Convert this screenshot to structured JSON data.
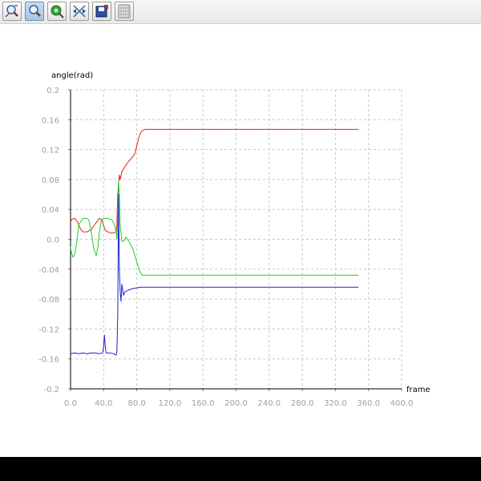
{
  "toolbar": {
    "buttons": [
      {
        "name": "zoom-in-button",
        "icon": "zoom-in-icon"
      },
      {
        "name": "zoom-button",
        "icon": "magnifier-icon",
        "active": true
      },
      {
        "name": "pan-button",
        "icon": "pan-icon"
      },
      {
        "name": "auto-fit-button",
        "icon": "fit-icon"
      },
      {
        "name": "export-button",
        "icon": "save-icon"
      },
      {
        "name": "grid-toggle-button",
        "icon": "grid-icon"
      }
    ]
  },
  "chart_data": {
    "type": "line",
    "xlabel": "frame",
    "ylabel": "angle(rad)",
    "xlim": [
      0,
      400
    ],
    "ylim": [
      -0.2,
      0.2
    ],
    "xticks": [
      "0.0",
      "40.0",
      "80.0",
      "120.0",
      "160.0",
      "200.0",
      "240.0",
      "280.0",
      "320.0",
      "360.0",
      "400.0"
    ],
    "yticks": [
      "0.2",
      "0.16",
      "0.12",
      "0.08",
      "0.04",
      "0.0",
      "-0.04",
      "-0.08",
      "-0.12",
      "-0.16",
      "-0.2"
    ],
    "grid": true,
    "series": [
      {
        "color": "#e02020",
        "points": [
          [
            0,
            0.024
          ],
          [
            2,
            0.027
          ],
          [
            5,
            0.028
          ],
          [
            8,
            0.024
          ],
          [
            12,
            0.014
          ],
          [
            15,
            0.01
          ],
          [
            20,
            0.01
          ],
          [
            25,
            0.013
          ],
          [
            30,
            0.021
          ],
          [
            35,
            0.028
          ],
          [
            38,
            0.026
          ],
          [
            40,
            0.018
          ],
          [
            42,
            0.012
          ],
          [
            45,
            0.01
          ],
          [
            50,
            0.008
          ],
          [
            55,
            0.01
          ],
          [
            56,
            0.02
          ],
          [
            57,
            0.06
          ],
          [
            58,
            0.075
          ],
          [
            59,
            0.086
          ],
          [
            60,
            0.08
          ],
          [
            62,
            0.09
          ],
          [
            65,
            0.096
          ],
          [
            70,
            0.104
          ],
          [
            75,
            0.11
          ],
          [
            78,
            0.115
          ],
          [
            80,
            0.125
          ],
          [
            83,
            0.138
          ],
          [
            86,
            0.145
          ],
          [
            90,
            0.147
          ],
          [
            100,
            0.147
          ],
          [
            200,
            0.147
          ],
          [
            300,
            0.147
          ],
          [
            348,
            0.147
          ]
        ]
      },
      {
        "color": "#20d020",
        "points": [
          [
            0,
            -0.01
          ],
          [
            1,
            -0.018
          ],
          [
            3,
            -0.024
          ],
          [
            5,
            -0.02
          ],
          [
            8,
            0.0
          ],
          [
            10,
            0.02
          ],
          [
            15,
            0.028
          ],
          [
            20,
            0.028
          ],
          [
            22,
            0.026
          ],
          [
            25,
            0.01
          ],
          [
            28,
            -0.012
          ],
          [
            31,
            -0.022
          ],
          [
            33,
            -0.01
          ],
          [
            35,
            0.01
          ],
          [
            37,
            0.025
          ],
          [
            40,
            0.028
          ],
          [
            45,
            0.028
          ],
          [
            50,
            0.026
          ],
          [
            53,
            0.02
          ],
          [
            55,
            0.01
          ],
          [
            56,
            0.0
          ],
          [
            57,
            0.03
          ],
          [
            58,
            0.078
          ],
          [
            59,
            0.06
          ],
          [
            60,
            0.02
          ],
          [
            62,
            -0.003
          ],
          [
            65,
            -0.002
          ],
          [
            67,
            0.003
          ],
          [
            70,
            -0.002
          ],
          [
            75,
            -0.012
          ],
          [
            80,
            -0.03
          ],
          [
            84,
            -0.044
          ],
          [
            87,
            -0.048
          ],
          [
            90,
            -0.048
          ],
          [
            200,
            -0.048
          ],
          [
            300,
            -0.048
          ],
          [
            348,
            -0.048
          ]
        ]
      },
      {
        "color": "#2020d0",
        "points": [
          [
            0,
            -0.153
          ],
          [
            5,
            -0.152
          ],
          [
            10,
            -0.153
          ],
          [
            15,
            -0.152
          ],
          [
            20,
            -0.153
          ],
          [
            25,
            -0.152
          ],
          [
            30,
            -0.152
          ],
          [
            35,
            -0.153
          ],
          [
            39,
            -0.152
          ],
          [
            40,
            -0.142
          ],
          [
            41,
            -0.128
          ],
          [
            42,
            -0.145
          ],
          [
            43,
            -0.152
          ],
          [
            48,
            -0.152
          ],
          [
            52,
            -0.153
          ],
          [
            55,
            -0.155
          ],
          [
            56,
            -0.15
          ],
          [
            57,
            -0.1
          ],
          [
            58,
            0.06
          ],
          [
            59,
            -0.04
          ],
          [
            60,
            -0.07
          ],
          [
            61,
            -0.083
          ],
          [
            62,
            -0.06
          ],
          [
            64,
            -0.075
          ],
          [
            66,
            -0.07
          ],
          [
            70,
            -0.068
          ],
          [
            75,
            -0.066
          ],
          [
            80,
            -0.065
          ],
          [
            85,
            -0.064
          ],
          [
            90,
            -0.064
          ],
          [
            200,
            -0.064
          ],
          [
            300,
            -0.064
          ],
          [
            348,
            -0.064
          ]
        ]
      }
    ]
  }
}
